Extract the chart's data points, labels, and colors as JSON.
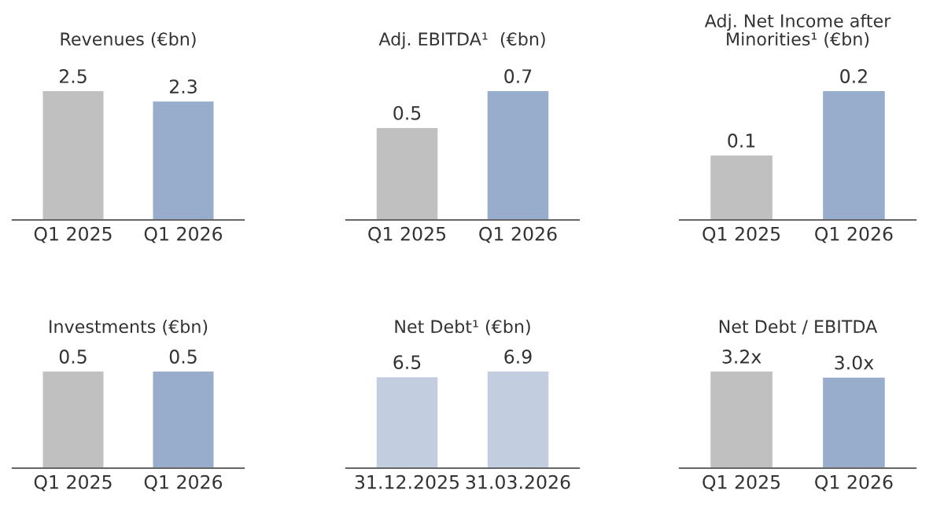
{
  "chart_data": [
    {
      "type": "bar",
      "title": "Revenues (€bn)",
      "categories": [
        "Q1 2025",
        "Q1 2026"
      ],
      "values": [
        2.5,
        2.3
      ],
      "colors": [
        "#c0c0c0",
        "#98adcb"
      ],
      "data_labels": true
    },
    {
      "type": "bar",
      "title": "Adj. EBITDA¹  (€bn)",
      "categories": [
        "Q1 2025",
        "Q1 2026"
      ],
      "values": [
        0.5,
        0.7
      ],
      "colors": [
        "#c0c0c0",
        "#98adcb"
      ],
      "data_labels": true
    },
    {
      "type": "bar",
      "title": "Adj. Net Income after\nMinorities¹ (€bn)",
      "categories": [
        "Q1 2025",
        "Q1 2026"
      ],
      "values": [
        0.1,
        0.2
      ],
      "colors": [
        "#c0c0c0",
        "#98adcb"
      ],
      "data_labels": true
    },
    {
      "type": "bar",
      "title": "Investments (€bn)",
      "categories": [
        "Q1 2025",
        "Q1 2026"
      ],
      "values": [
        0.5,
        0.5
      ],
      "colors": [
        "#c0c0c0",
        "#98adcb"
      ],
      "data_labels": true
    },
    {
      "type": "bar",
      "title": "Net Debt¹ (€bn)",
      "categories": [
        "31.12.2025",
        "31.03.2026"
      ],
      "values": [
        6.5,
        6.9
      ],
      "colors": [
        "#c3cde0",
        "#c3cde0"
      ],
      "data_labels": true
    },
    {
      "type": "bar",
      "title": "Net Debt / EBITDA",
      "categories": [
        "Q1 2025",
        "Q1 2026"
      ],
      "values": [
        3.2,
        3.0
      ],
      "value_labels": [
        "3.2x",
        "3.0x"
      ],
      "colors": [
        "#c0c0c0",
        "#98adcb"
      ]
    }
  ]
}
